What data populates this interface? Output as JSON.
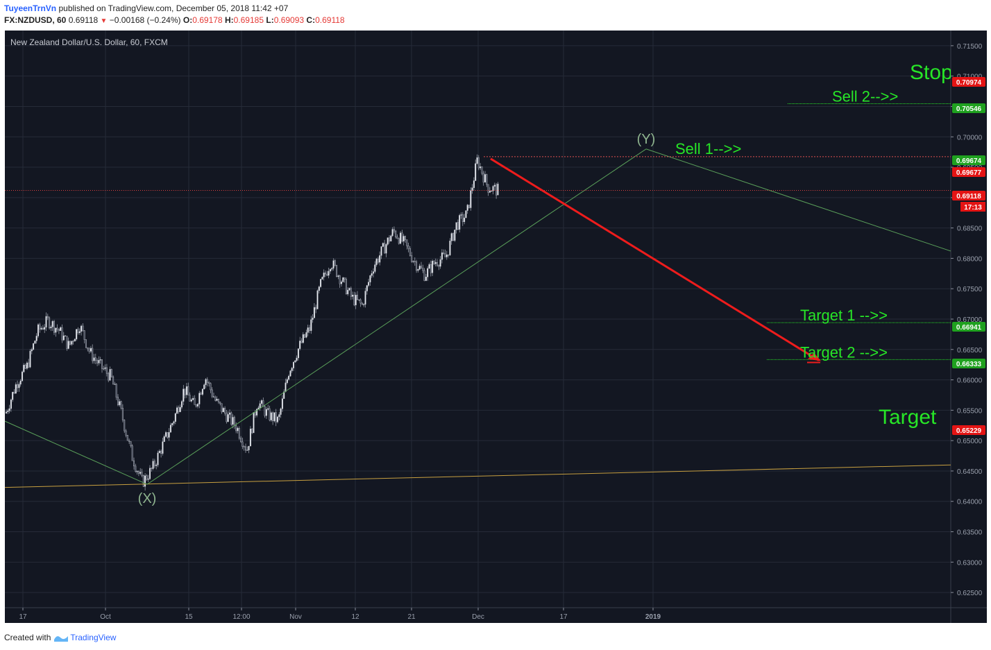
{
  "header": {
    "author": "TuyeenTrnVn",
    "published": "published on TradingView.com, December 05, 2018 11:42 +07",
    "symbol": "FX:NZDUSD, 60",
    "last": "0.69118",
    "change": "−0.00168 (−0.24%)",
    "o_label": "O:",
    "o": "0.69178",
    "h_label": "H:",
    "h": "0.69185",
    "l_label": "L:",
    "l": "0.69093",
    "c_label": "C:",
    "c": "0.69118"
  },
  "footer": {
    "created": "Created with",
    "brand": "TradingView"
  },
  "colors": {
    "background": "#131722",
    "grid": "#262b38",
    "up": "#d1d4dc",
    "down": "#c7ccd6",
    "annotation": "#27e627",
    "wave": "#5aa05a",
    "trend": "#c8a040",
    "arrow": "#ee1c1c",
    "badge_red": "#e41414",
    "badge_green": "#1fa11f"
  },
  "chart_data": {
    "type": "candlestick",
    "title": "New Zealand Dollar/U.S. Dollar, 60, FXCM",
    "ylim": [
      0.6225,
      0.7175
    ],
    "y_ticks": [
      "0.71500",
      "0.71000",
      "0.70500",
      "0.70000",
      "0.69500",
      "0.69000",
      "0.68500",
      "0.68000",
      "0.67500",
      "0.67000",
      "0.66500",
      "0.66000",
      "0.65500",
      "0.65000",
      "0.64500",
      "0.64000",
      "0.63500",
      "0.63000",
      "0.62500"
    ],
    "x_ticks": [
      "17",
      "Oct",
      "15",
      "12:00",
      "Nov",
      "12",
      "21",
      "Dec",
      "17",
      "2019"
    ],
    "price_path": [
      [
        0.6545,
        0.655
      ],
      [
        0.659,
        0.66
      ],
      [
        0.662,
        0.6625
      ],
      [
        0.667,
        0.669
      ],
      [
        0.6695,
        0.67
      ],
      [
        0.668,
        0.6685
      ],
      [
        0.665,
        0.666
      ],
      [
        0.669,
        0.6692
      ],
      [
        0.664,
        0.665
      ],
      [
        0.662,
        0.6625
      ],
      [
        0.66,
        0.661
      ],
      [
        0.654,
        0.655
      ],
      [
        0.647,
        0.648
      ],
      [
        0.643,
        0.6432
      ],
      [
        0.645,
        0.646
      ],
      [
        0.649,
        0.65
      ],
      [
        0.653,
        0.654
      ],
      [
        0.658,
        0.659
      ],
      [
        0.655,
        0.656
      ],
      [
        0.66,
        0.661
      ],
      [
        0.656,
        0.657
      ],
      [
        0.654,
        0.6545
      ],
      [
        0.652,
        0.6525
      ],
      [
        0.648,
        0.649
      ],
      [
        0.656,
        0.657
      ],
      [
        0.654,
        0.6545
      ],
      [
        0.653,
        0.6535
      ],
      [
        0.661,
        0.662
      ],
      [
        0.665,
        0.666
      ],
      [
        0.668,
        0.669
      ],
      [
        0.675,
        0.676
      ],
      [
        0.679,
        0.68
      ],
      [
        0.676,
        0.677
      ],
      [
        0.673,
        0.674
      ],
      [
        0.672,
        0.6725
      ],
      [
        0.678,
        0.679
      ],
      [
        0.681,
        0.682
      ],
      [
        0.684,
        0.685
      ],
      [
        0.682,
        0.683
      ],
      [
        0.679,
        0.68
      ],
      [
        0.677,
        0.6775
      ],
      [
        0.679,
        0.68
      ],
      [
        0.68,
        0.6805
      ],
      [
        0.685,
        0.686
      ],
      [
        0.687,
        0.6875
      ],
      [
        0.696,
        0.6965
      ],
      [
        0.692,
        0.6915
      ],
      [
        0.69118,
        0.69118
      ]
    ],
    "series": [
      {
        "name": "(X)",
        "type": "label",
        "value": 0.6425
      },
      {
        "name": "(Y)",
        "type": "label",
        "value": 0.698
      }
    ],
    "annotations": [
      {
        "text": "Stop",
        "price": 0.70974
      },
      {
        "text": "Sell 2-->>",
        "price": 0.70546
      },
      {
        "text": "Sell 1-->>",
        "price": 0.69674
      },
      {
        "text": "Target 1 -->>",
        "price": 0.66941
      },
      {
        "text": "Target 2 -->>",
        "price": 0.66333
      },
      {
        "text": "Target",
        "price": 0.65229
      }
    ],
    "wave_labels": [
      "(X)",
      "(Y)"
    ],
    "price_badges": [
      {
        "label": "0.70974",
        "price": 0.70974,
        "kind": "red"
      },
      {
        "label": "0.70546",
        "price": 0.70546,
        "kind": "green"
      },
      {
        "label": "0.69674",
        "price": 0.69674,
        "kind": "green"
      },
      {
        "label": "0.69677",
        "price": 0.69677,
        "kind": "red"
      },
      {
        "label": "0.69118",
        "price": 0.69118,
        "kind": "red"
      },
      {
        "label": "0.66941",
        "price": 0.66941,
        "kind": "green"
      },
      {
        "label": "0.66333",
        "price": 0.66333,
        "kind": "green"
      },
      {
        "label": "0.65229",
        "price": 0.65229,
        "kind": "red"
      }
    ],
    "countdown": "17:13",
    "stop_price": 0.70974,
    "targets": [
      0.66941,
      0.66333,
      0.65229
    ],
    "sell_levels": [
      0.69674,
      0.70546
    ],
    "legend": "none",
    "grid": true
  }
}
